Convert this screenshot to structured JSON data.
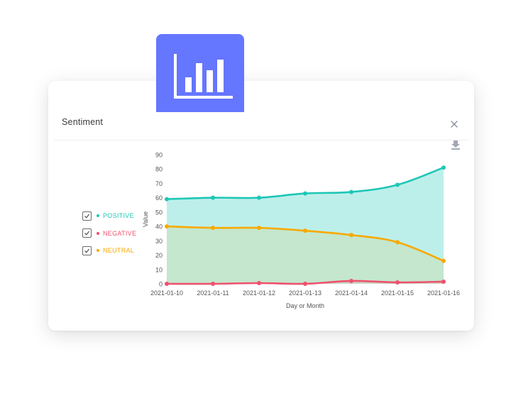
{
  "card": {
    "title": "Sentiment"
  },
  "icons": {
    "badge": "bar-chart-icon",
    "close": "close-icon",
    "download": "download-icon",
    "checkbox": "checkmark-icon"
  },
  "colors": {
    "accent": "#6576ff",
    "positive": "#1ec6b6",
    "negative": "#f0506e",
    "neutral": "#f8a900",
    "area": "#b9eee9"
  },
  "legend": [
    {
      "label": "POSITIVE",
      "color": "#1ec6b6",
      "checked": true
    },
    {
      "label": "NEGATIVE",
      "color": "#f0506e",
      "checked": true
    },
    {
      "label": "NEUTRAL",
      "color": "#f8a900",
      "checked": true
    }
  ],
  "chart_data": {
    "type": "area",
    "x": [
      "2021-01-10",
      "2021-01-11",
      "2021-01-12",
      "2021-01-13",
      "2021-01-14",
      "2021-01-15",
      "2021-01-16"
    ],
    "series": [
      {
        "name": "POSITIVE",
        "values": [
          59,
          60,
          60,
          63,
          64,
          69,
          81
        ]
      },
      {
        "name": "NEUTRAL",
        "values": [
          40,
          39,
          39,
          37,
          34,
          29,
          16
        ]
      },
      {
        "name": "NEGATIVE",
        "values": [
          0,
          0,
          0.5,
          0,
          2,
          1,
          1.5
        ]
      }
    ],
    "xlabel": "Day or Month",
    "ylabel": "Value",
    "ylim": [
      0,
      90
    ],
    "yticks": [
      0,
      10,
      20,
      30,
      40,
      50,
      60,
      70,
      80,
      90
    ],
    "grid": false,
    "legend_position": "left"
  }
}
